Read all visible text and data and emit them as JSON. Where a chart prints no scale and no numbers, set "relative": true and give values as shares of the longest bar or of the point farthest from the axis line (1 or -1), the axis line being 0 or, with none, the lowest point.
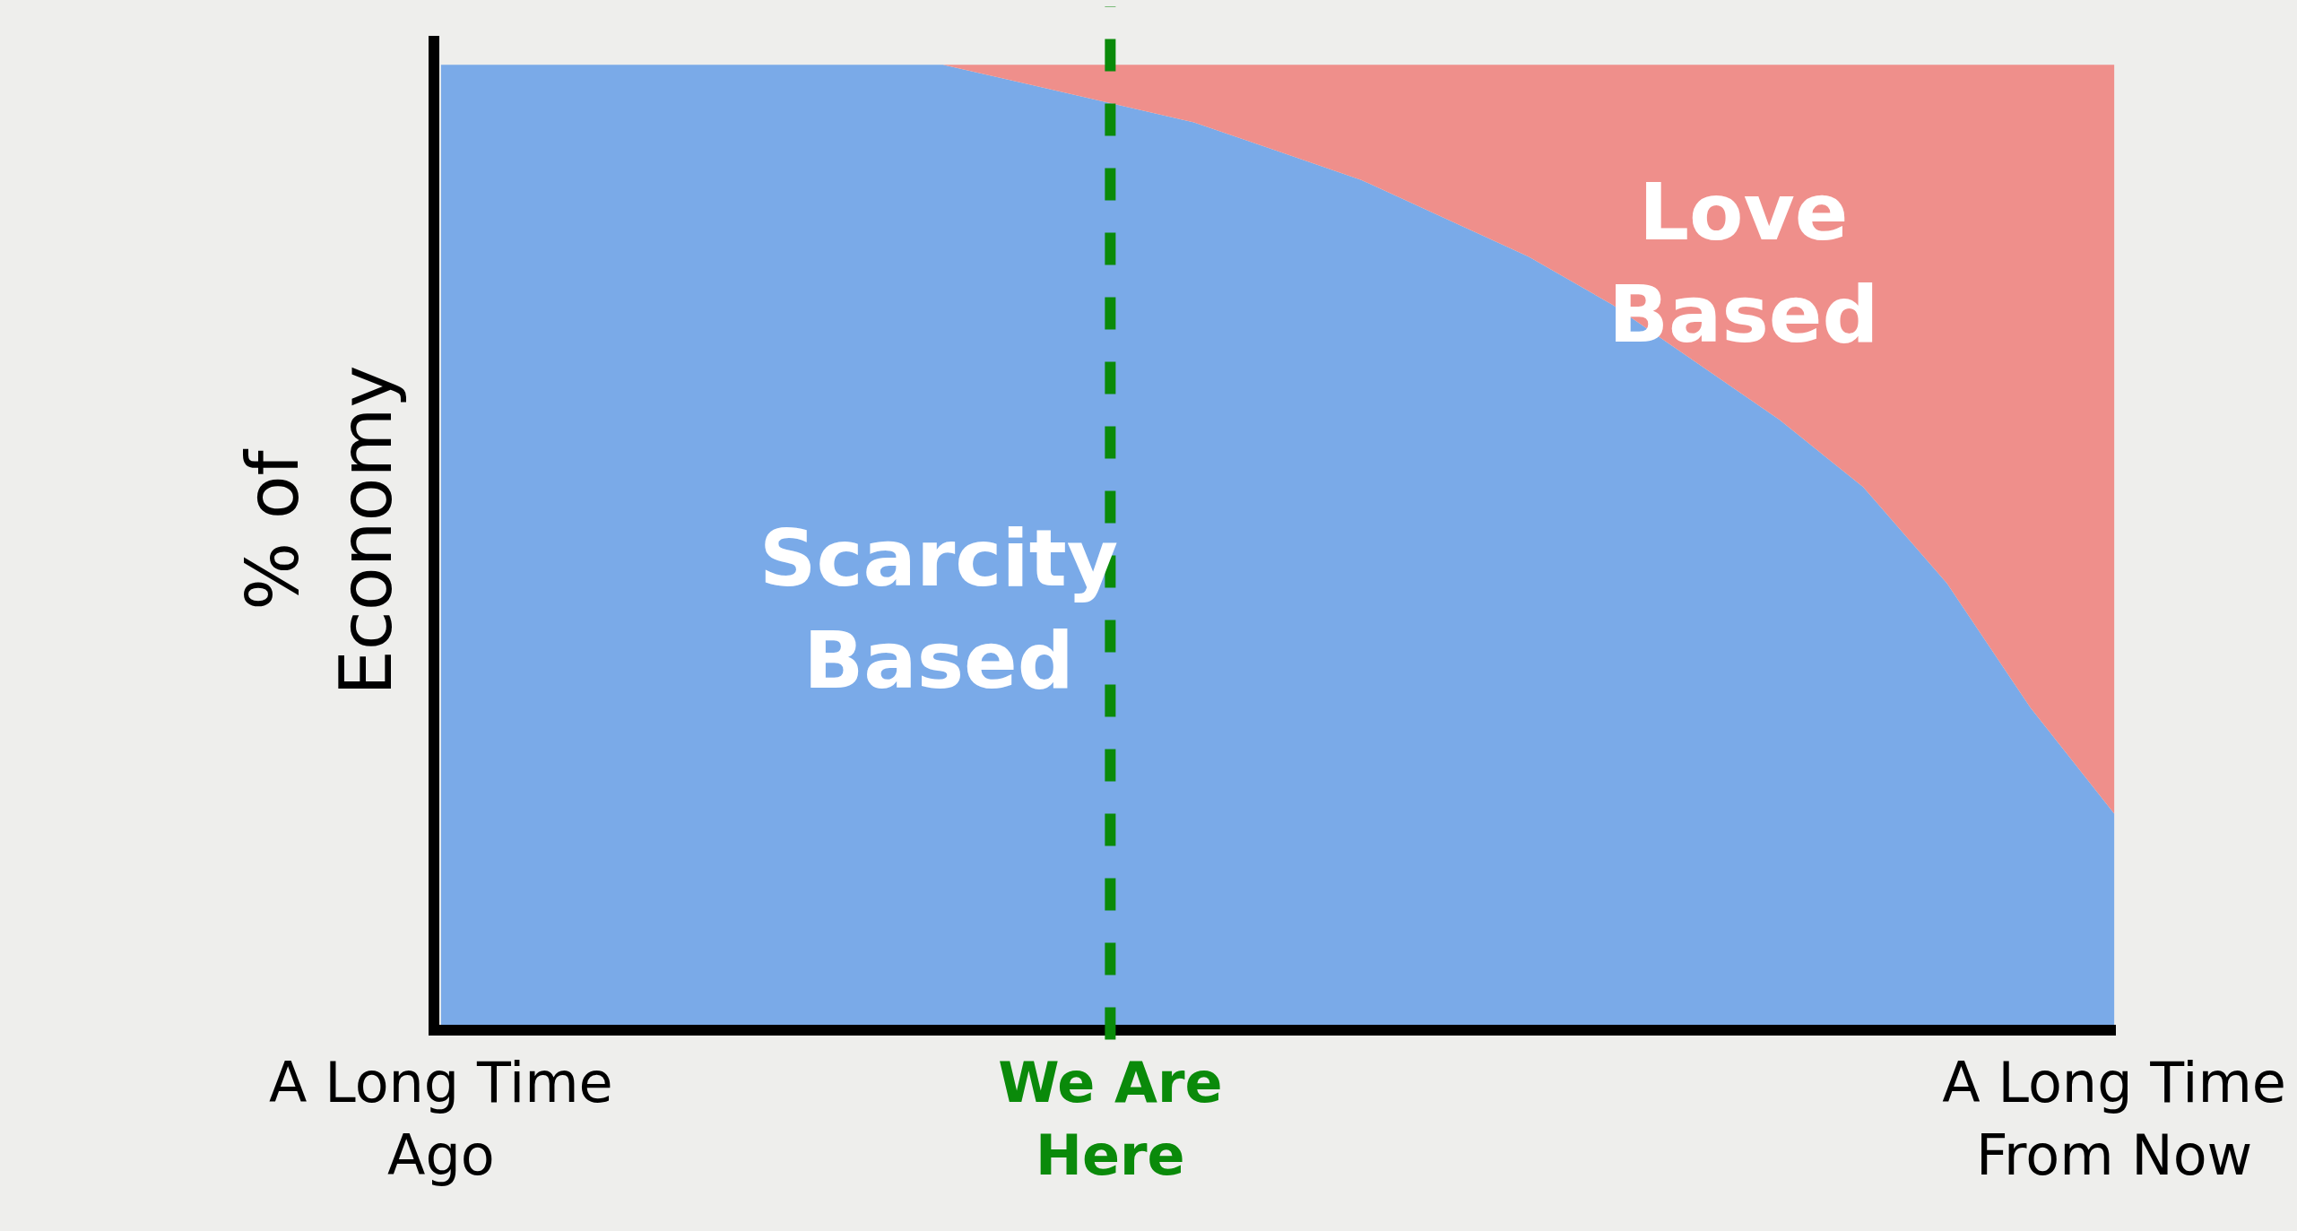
{
  "chart_data": {
    "type": "area",
    "stacked": true,
    "relative": true,
    "ylabel": "% of Economy",
    "categories": [
      "A Long Time Ago",
      null,
      null,
      null,
      null,
      null,
      null,
      null,
      "We Are Here",
      null,
      null,
      null,
      null,
      null,
      null,
      null,
      null,
      null,
      null,
      null,
      "A Long Time From Now"
    ],
    "series": [
      {
        "name": "Scarcity Based",
        "color": "#7aaae8",
        "values": [
          1,
          1,
          1,
          1,
          1,
          1,
          1,
          0.98,
          0.96,
          0.94,
          0.91,
          0.88,
          0.84,
          0.8,
          0.75,
          0.69,
          0.63,
          0.56,
          0.46,
          0.33,
          0.22
        ]
      },
      {
        "name": "Love Based",
        "color": "#ef8f8b",
        "values": [
          0,
          0,
          0,
          0,
          0,
          0,
          0,
          0.02,
          0.04,
          0.06,
          0.09,
          0.12,
          0.16,
          0.2,
          0.25,
          0.31,
          0.37,
          0.44,
          0.54,
          0.67,
          0.78
        ]
      }
    ],
    "ref_lines": [
      {
        "axis": "x",
        "value": "We Are Here",
        "color": "#0a8a0a",
        "line_style": "dashed"
      }
    ],
    "grid": false,
    "legend": false
  }
}
